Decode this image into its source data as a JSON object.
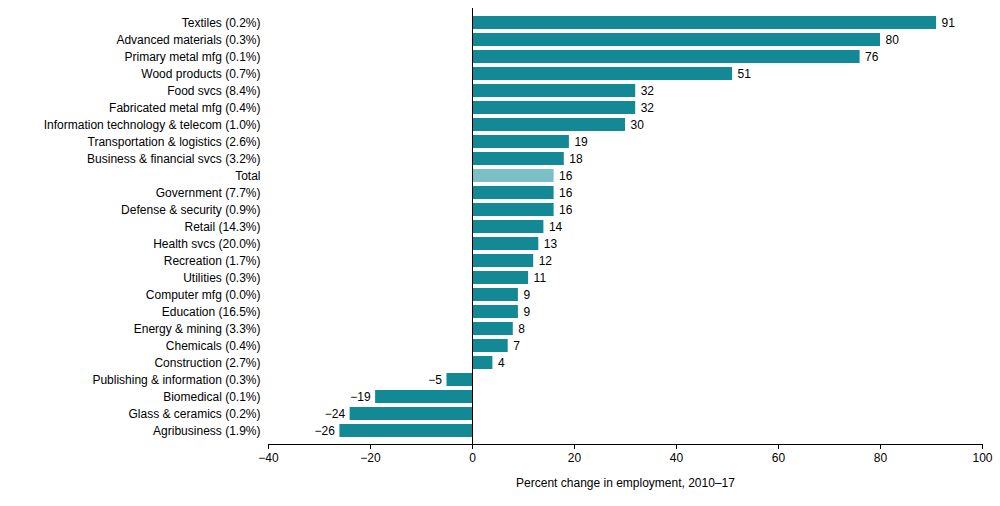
{
  "chart_data": {
    "type": "bar",
    "orientation": "horizontal",
    "xlabel": "Percent change in employment, 2010–17",
    "categories": [
      "Textiles (0.2%)",
      "Advanced materials (0.3%)",
      "Primary metal mfg (0.1%)",
      "Wood products (0.7%)",
      "Food svcs (8.4%)",
      "Fabricated metal mfg (0.4%)",
      "Information technology & telecom (1.0%)",
      "Transportation & logistics (2.6%)",
      "Business & financial svcs (3.2%)",
      "Total",
      "Government (7.7%)",
      "Defense & security (0.9%)",
      "Retail (14.3%)",
      "Health svcs (20.0%)",
      "Recreation (1.7%)",
      "Utilities (0.3%)",
      "Computer mfg (0.0%)",
      "Education (16.5%)",
      "Energy & mining (3.3%)",
      "Chemicals (0.4%)",
      "Construction (2.7%)",
      "Publishing & information (0.3%)",
      "Biomedical (0.1%)",
      "Glass & ceramics (0.2%)",
      "Agribusiness (1.9%)"
    ],
    "values": [
      91,
      80,
      76,
      51,
      32,
      32,
      30,
      19,
      18,
      16,
      16,
      16,
      14,
      13,
      12,
      11,
      9,
      9,
      8,
      7,
      4,
      -5,
      -19,
      -24,
      -26
    ],
    "value_labels": [
      "91",
      "80",
      "76",
      "51",
      "32",
      "32",
      "30",
      "19",
      "18",
      "16",
      "16",
      "16",
      "14",
      "13",
      "12",
      "11",
      "9",
      "9",
      "8",
      "7",
      "4",
      "−5",
      "−19",
      "−24",
      "−26"
    ],
    "colors": [
      "#138995",
      "#138995",
      "#138995",
      "#138995",
      "#138995",
      "#138995",
      "#138995",
      "#138995",
      "#138995",
      "#7cc0c7",
      "#138995",
      "#138995",
      "#138995",
      "#138995",
      "#138995",
      "#138995",
      "#138995",
      "#138995",
      "#138995",
      "#138995",
      "#138995",
      "#138995",
      "#138995",
      "#138995",
      "#138995"
    ],
    "xlim": [
      -40,
      100
    ],
    "xticks": [
      {
        "value": -40,
        "label": "−40"
      },
      {
        "value": -20,
        "label": "−20"
      },
      0,
      20,
      40,
      60,
      80,
      100
    ],
    "data_labels": true,
    "grid": false
  }
}
